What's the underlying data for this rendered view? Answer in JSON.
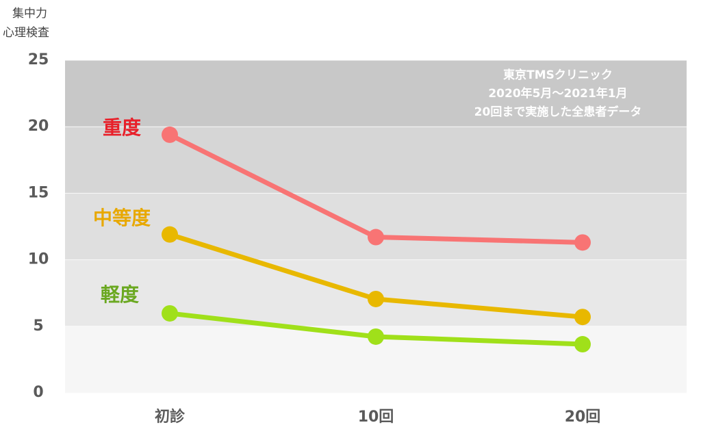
{
  "chart_data": {
    "type": "line",
    "ylabel": [
      "集中力",
      "心理検査"
    ],
    "annotation": [
      "東京TMSクリニック",
      "2020年5月〜2021年1月",
      "20回まで実施した全患者データ"
    ],
    "categories": [
      "初診",
      "10回",
      "20回"
    ],
    "series": [
      {
        "name": "重度",
        "color": "#f87474",
        "label_color": "#e8202a",
        "values": [
          19.4,
          11.7,
          11.3
        ]
      },
      {
        "name": "中等度",
        "color": "#e8b800",
        "label_color": "#e8a800",
        "values": [
          11.9,
          7.05,
          5.7
        ]
      },
      {
        "name": "軽度",
        "color": "#a0e01a",
        "label_color": "#6aa820",
        "values": [
          5.97,
          4.22,
          3.65
        ]
      }
    ],
    "ylim": [
      0,
      25
    ],
    "yticks": [
      0,
      5,
      10,
      15,
      20,
      25
    ],
    "band_colors": [
      "#f6f6f6",
      "#e8e8e8",
      "#dfdfdf",
      "#d6d6d6",
      "#c8c8c8"
    ],
    "grid": true
  }
}
